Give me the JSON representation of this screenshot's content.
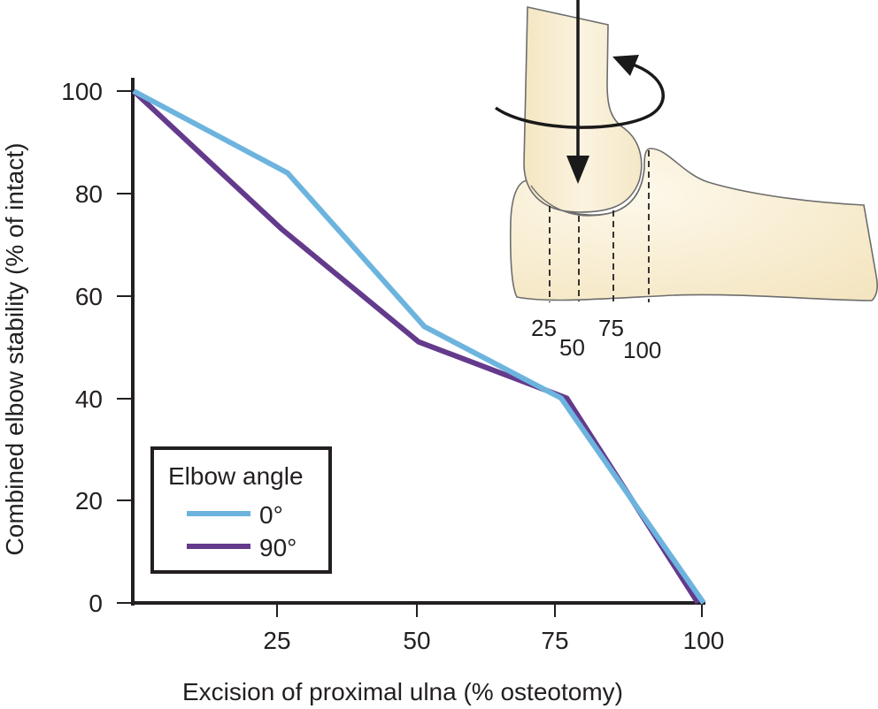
{
  "chart_data": {
    "type": "line",
    "title": "",
    "xlabel": "Excision of proximal ulna (% osteotomy)",
    "ylabel": "Combined elbow stability (% of intact)",
    "xlim": [
      0,
      100
    ],
    "ylim": [
      0,
      100
    ],
    "x_ticks": [
      "25",
      "50",
      "75",
      "100"
    ],
    "y_ticks": [
      "0",
      "20",
      "40",
      "60",
      "80",
      "100"
    ],
    "grid": false,
    "legend": {
      "title": "Elbow angle",
      "position": "lower-left",
      "entries": [
        "0°",
        "90°"
      ]
    },
    "series": [
      {
        "name": "0°",
        "color": "#6cb4de",
        "x": [
          0,
          27,
          51,
          75,
          100
        ],
        "y": [
          100,
          84,
          54,
          40,
          0
        ]
      },
      {
        "name": "90°",
        "color": "#643a8c",
        "x": [
          0,
          26,
          50,
          76,
          99
        ],
        "y": [
          100,
          73,
          51,
          40,
          0
        ]
      }
    ],
    "inset_illustration": {
      "description": "Elbow joint diagram (humerus on ulna) with axial load arrow and rotational arrow; dashed osteotomy lines on proximal ulna",
      "osteotomy_labels": [
        "25",
        "50",
        "75",
        "100"
      ]
    }
  },
  "colors": {
    "axis": "#231f20",
    "series_0deg": "#6cb4de",
    "series_90deg": "#643a8c",
    "bone_fill": "#f6ebcc",
    "bone_outline": "#6d6d6d"
  }
}
